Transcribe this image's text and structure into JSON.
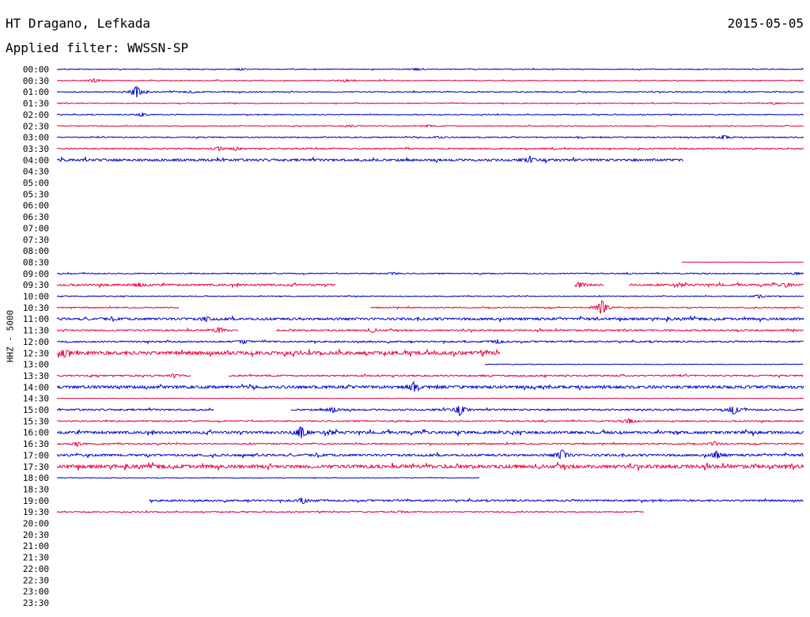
{
  "header": {
    "station": "HT Dragano, Lefkada",
    "date": "2015-05-05",
    "filter_label": "Applied filter: WWSSN-SP"
  },
  "chart_data": {
    "type": "line",
    "title": "HT Dragano, Lefkada",
    "subtitle": "Applied filter: WWSSN-SP",
    "date": "2015-05-05",
    "ylabel": "HHZ - 5000",
    "x_unit": "minutes past row start",
    "xlim": [
      0,
      30
    ],
    "colors": {
      "even": "#0000c8",
      "odd": "#e8003c"
    },
    "rows": [
      {
        "label": "00:00",
        "segments": [
          [
            0,
            30
          ]
        ],
        "noise": 0.4,
        "events": [
          [
            14.4,
            1
          ],
          [
            7.4,
            1
          ]
        ]
      },
      {
        "label": "00:30",
        "segments": [
          [
            0,
            30
          ]
        ],
        "noise": 0.4,
        "events": [
          [
            1.5,
            2
          ],
          [
            11.6,
            1
          ]
        ]
      },
      {
        "label": "01:00",
        "segments": [
          [
            0,
            30
          ]
        ],
        "noise": 0.5,
        "events": [
          [
            3.2,
            7
          ],
          [
            5.4,
            1
          ]
        ]
      },
      {
        "label": "01:30",
        "segments": [
          [
            0,
            30
          ]
        ],
        "noise": 0.4,
        "events": [
          [
            28.8,
            1
          ]
        ]
      },
      {
        "label": "02:00",
        "segments": [
          [
            0,
            30
          ]
        ],
        "noise": 0.4,
        "events": [
          [
            3.4,
            2
          ]
        ]
      },
      {
        "label": "02:30",
        "segments": [
          [
            0,
            30
          ]
        ],
        "noise": 0.4,
        "events": [
          [
            11.8,
            1
          ],
          [
            14.9,
            1
          ]
        ]
      },
      {
        "label": "03:00",
        "segments": [
          [
            0,
            30
          ]
        ],
        "noise": 0.5,
        "events": [
          [
            15.3,
            1
          ],
          [
            26.8,
            2
          ]
        ]
      },
      {
        "label": "03:30",
        "segments": [
          [
            0,
            30
          ]
        ],
        "noise": 0.6,
        "events": [
          [
            6.5,
            2
          ],
          [
            7.2,
            2
          ]
        ]
      },
      {
        "label": "04:00",
        "segments": [
          [
            0,
            25.2
          ]
        ],
        "noise": 1.1,
        "events": [
          [
            19.0,
            2
          ]
        ]
      },
      {
        "label": "04:30",
        "segments": [],
        "noise": 0,
        "events": []
      },
      {
        "label": "05:00",
        "segments": [],
        "noise": 0,
        "events": []
      },
      {
        "label": "05:30",
        "segments": [],
        "noise": 0,
        "events": []
      },
      {
        "label": "06:00",
        "segments": [],
        "noise": 0,
        "events": []
      },
      {
        "label": "06:30",
        "segments": [],
        "noise": 0,
        "events": []
      },
      {
        "label": "07:00",
        "segments": [],
        "noise": 0,
        "events": []
      },
      {
        "label": "07:30",
        "segments": [],
        "noise": 0,
        "events": []
      },
      {
        "label": "08:00",
        "segments": [],
        "noise": 0,
        "events": []
      },
      {
        "label": "08:30",
        "segments": [
          [
            25.1,
            30
          ]
        ],
        "noise": 0.2,
        "events": []
      },
      {
        "label": "09:00",
        "segments": [
          [
            0,
            30
          ]
        ],
        "noise": 0.5,
        "events": [
          [
            13.5,
            1
          ],
          [
            29.7,
            1
          ]
        ]
      },
      {
        "label": "09:30",
        "segments": [
          [
            0,
            11.2
          ],
          [
            20.8,
            22.0
          ],
          [
            23.0,
            30
          ]
        ],
        "noise": 0.9,
        "events": [
          [
            3.3,
            2
          ],
          [
            21.0,
            3
          ],
          [
            29.3,
            2
          ]
        ]
      },
      {
        "label": "10:00",
        "segments": [
          [
            0,
            30
          ]
        ],
        "noise": 0.4,
        "events": [
          [
            28.2,
            2
          ]
        ]
      },
      {
        "label": "10:30",
        "segments": [
          [
            0,
            4.9
          ],
          [
            12.6,
            30
          ]
        ],
        "noise": 0.5,
        "events": [
          [
            21.9,
            9
          ]
        ]
      },
      {
        "label": "11:00",
        "segments": [
          [
            0,
            30
          ]
        ],
        "noise": 1.1,
        "events": [
          [
            6.0,
            2
          ]
        ]
      },
      {
        "label": "11:30",
        "segments": [
          [
            0,
            7.3
          ],
          [
            8.8,
            30
          ]
        ],
        "noise": 0.7,
        "events": [
          [
            6.5,
            3
          ],
          [
            12.7,
            2
          ]
        ]
      },
      {
        "label": "12:00",
        "segments": [
          [
            0,
            30
          ]
        ],
        "noise": 0.7,
        "events": [
          [
            7.5,
            2
          ],
          [
            17.7,
            2
          ]
        ]
      },
      {
        "label": "12:30",
        "segments": [
          [
            0,
            17.8
          ]
        ],
        "noise": 1.6,
        "events": [
          [
            0.3,
            4
          ]
        ]
      },
      {
        "label": "13:00",
        "segments": [
          [
            17.2,
            30
          ]
        ],
        "noise": 0.3,
        "events": []
      },
      {
        "label": "13:30",
        "segments": [
          [
            0,
            5.4
          ],
          [
            6.9,
            30
          ]
        ],
        "noise": 0.7,
        "events": [
          [
            4.7,
            2
          ]
        ]
      },
      {
        "label": "14:00",
        "segments": [
          [
            0,
            30
          ]
        ],
        "noise": 1.3,
        "events": [
          [
            14.3,
            4
          ]
        ]
      },
      {
        "label": "14:30",
        "segments": [
          [
            0,
            30
          ]
        ],
        "noise": 0.2,
        "events": []
      },
      {
        "label": "15:00",
        "segments": [
          [
            0,
            6.3
          ],
          [
            9.4,
            30
          ]
        ],
        "noise": 0.8,
        "events": [
          [
            11.1,
            3
          ],
          [
            16.2,
            6
          ],
          [
            27.2,
            5
          ]
        ]
      },
      {
        "label": "15:30",
        "segments": [
          [
            0,
            30
          ]
        ],
        "noise": 0.6,
        "events": [
          [
            23.0,
            3
          ]
        ]
      },
      {
        "label": "16:00",
        "segments": [
          [
            0,
            30
          ]
        ],
        "noise": 1.2,
        "events": [
          [
            9.8,
            7
          ]
        ]
      },
      {
        "label": "16:30",
        "segments": [
          [
            0,
            30
          ]
        ],
        "noise": 0.6,
        "events": [
          [
            0.8,
            2
          ],
          [
            26.4,
            2
          ]
        ]
      },
      {
        "label": "17:00",
        "segments": [
          [
            0,
            30
          ]
        ],
        "noise": 1.0,
        "events": [
          [
            20.3,
            6
          ],
          [
            26.5,
            4
          ]
        ]
      },
      {
        "label": "17:30",
        "segments": [
          [
            0,
            30
          ]
        ],
        "noise": 1.6,
        "events": []
      },
      {
        "label": "18:00",
        "segments": [
          [
            0,
            17.0
          ]
        ],
        "noise": 0.3,
        "events": []
      },
      {
        "label": "18:30",
        "segments": [],
        "noise": 0,
        "events": []
      },
      {
        "label": "19:00",
        "segments": [
          [
            3.7,
            30
          ]
        ],
        "noise": 0.8,
        "events": [
          [
            9.9,
            3
          ]
        ]
      },
      {
        "label": "19:30",
        "segments": [
          [
            0,
            23.6
          ]
        ],
        "noise": 0.5,
        "events": [
          [
            13.8,
            1
          ]
        ]
      },
      {
        "label": "20:00",
        "segments": [],
        "noise": 0,
        "events": []
      },
      {
        "label": "20:30",
        "segments": [],
        "noise": 0,
        "events": []
      },
      {
        "label": "21:00",
        "segments": [],
        "noise": 0,
        "events": []
      },
      {
        "label": "21:30",
        "segments": [],
        "noise": 0,
        "events": []
      },
      {
        "label": "22:00",
        "segments": [],
        "noise": 0,
        "events": []
      },
      {
        "label": "22:30",
        "segments": [],
        "noise": 0,
        "events": []
      },
      {
        "label": "23:00",
        "segments": [],
        "noise": 0,
        "events": []
      },
      {
        "label": "23:30",
        "segments": [],
        "noise": 0,
        "events": []
      }
    ]
  }
}
